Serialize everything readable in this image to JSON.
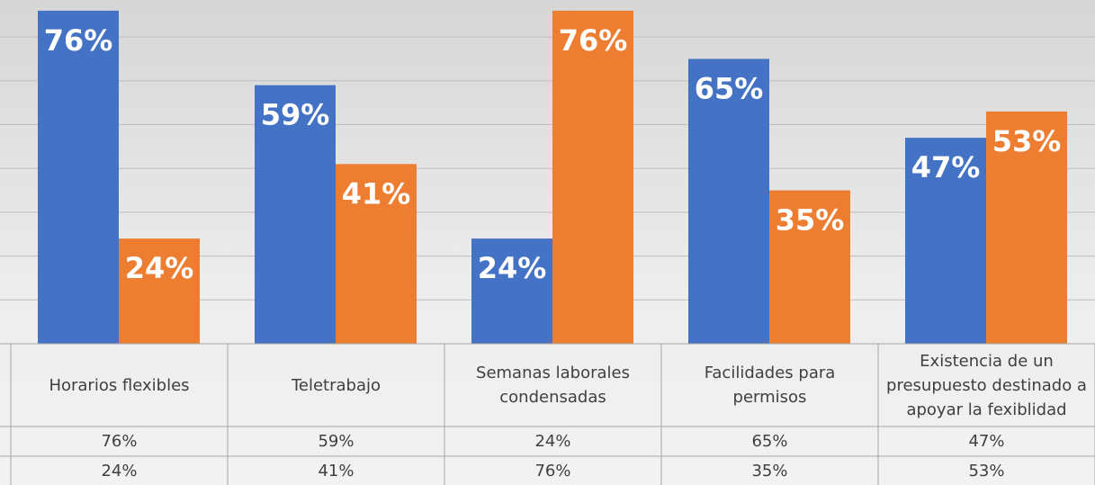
{
  "chart_data": {
    "type": "bar",
    "categories": [
      "Horarios flexibles",
      "Teletrabajo",
      "Semanas laborales condensadas",
      "Facilidades para permisos",
      "Existencia de un presupuesto destinado a apoyar la fexiblidad"
    ],
    "series": [
      {
        "color": "#4472c4",
        "values": [
          76,
          59,
          24,
          65,
          47
        ],
        "value_labels": [
          "76%",
          "59%",
          "24%",
          "65%",
          "47%"
        ]
      },
      {
        "color": "#ed7d31",
        "values": [
          24,
          41,
          76,
          35,
          53
        ],
        "value_labels": [
          "24%",
          "41%",
          "76%",
          "35%",
          "53%"
        ]
      }
    ],
    "ylim": [
      0,
      80
    ],
    "yticks": [
      0,
      10,
      20,
      30,
      40,
      50,
      60,
      70,
      80
    ],
    "grid": true
  }
}
